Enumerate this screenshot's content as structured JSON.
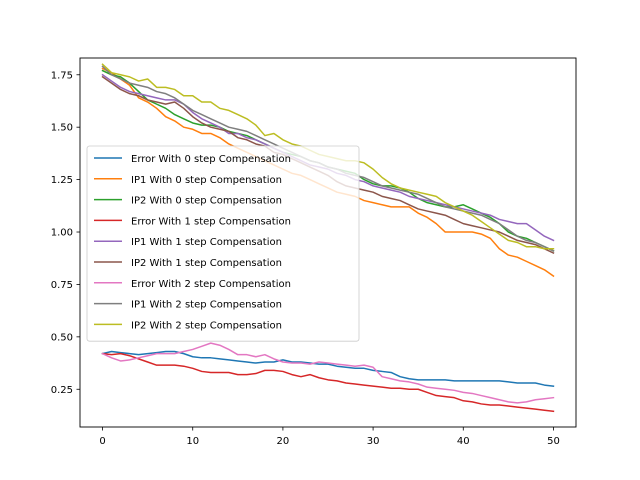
{
  "chart_data": {
    "type": "line",
    "title": "",
    "xlabel": "",
    "ylabel": "",
    "xlim": [
      -2.5,
      52.5
    ],
    "ylim": [
      0.07,
      1.83
    ],
    "xticks": [
      0,
      10,
      20,
      30,
      40,
      50
    ],
    "yticks": [
      0.25,
      0.5,
      0.75,
      1.0,
      1.25,
      1.5,
      1.75
    ],
    "xtick_labels": [
      "0",
      "10",
      "20",
      "30",
      "40",
      "50"
    ],
    "ytick_labels": [
      "0.25",
      "0.50",
      "0.75",
      "1.00",
      "1.25",
      "1.50",
      "1.75"
    ],
    "grid": false,
    "legend_position": "center-left",
    "x": [
      0,
      1,
      2,
      3,
      4,
      5,
      6,
      7,
      8,
      9,
      10,
      11,
      12,
      13,
      14,
      15,
      16,
      17,
      18,
      19,
      20,
      21,
      22,
      23,
      24,
      25,
      26,
      27,
      28,
      29,
      30,
      31,
      32,
      33,
      34,
      35,
      36,
      37,
      38,
      39,
      40,
      41,
      42,
      43,
      44,
      45,
      46,
      47,
      48,
      49,
      50
    ],
    "series": [
      {
        "name": "Error With 0 step Compensation",
        "color": "#1f77b4",
        "values": [
          0.42,
          0.43,
          0.425,
          0.42,
          0.415,
          0.42,
          0.425,
          0.43,
          0.43,
          0.42,
          0.405,
          0.4,
          0.4,
          0.395,
          0.39,
          0.385,
          0.38,
          0.375,
          0.38,
          0.38,
          0.39,
          0.38,
          0.38,
          0.375,
          0.37,
          0.37,
          0.36,
          0.355,
          0.35,
          0.35,
          0.34,
          0.335,
          0.33,
          0.31,
          0.3,
          0.295,
          0.295,
          0.295,
          0.295,
          0.29,
          0.29,
          0.29,
          0.29,
          0.29,
          0.29,
          0.285,
          0.28,
          0.28,
          0.28,
          0.27,
          0.265
        ]
      },
      {
        "name": "IP1 With 0 step Compensation",
        "color": "#ff7f0e",
        "values": [
          1.78,
          1.76,
          1.73,
          1.7,
          1.64,
          1.62,
          1.59,
          1.55,
          1.53,
          1.5,
          1.49,
          1.47,
          1.47,
          1.45,
          1.42,
          1.4,
          1.38,
          1.36,
          1.34,
          1.32,
          1.3,
          1.28,
          1.27,
          1.25,
          1.23,
          1.21,
          1.19,
          1.18,
          1.17,
          1.15,
          1.14,
          1.13,
          1.12,
          1.12,
          1.12,
          1.09,
          1.07,
          1.04,
          1.0,
          1.0,
          1.0,
          1.0,
          0.99,
          0.97,
          0.92,
          0.89,
          0.88,
          0.86,
          0.84,
          0.82,
          0.79
        ]
      },
      {
        "name": "IP2 With 0 step Compensation",
        "color": "#2ca02c",
        "values": [
          1.77,
          1.75,
          1.74,
          1.71,
          1.67,
          1.63,
          1.61,
          1.59,
          1.56,
          1.54,
          1.52,
          1.51,
          1.51,
          1.5,
          1.48,
          1.47,
          1.46,
          1.44,
          1.42,
          1.4,
          1.38,
          1.37,
          1.36,
          1.34,
          1.33,
          1.31,
          1.3,
          1.29,
          1.28,
          1.25,
          1.23,
          1.22,
          1.22,
          1.21,
          1.19,
          1.16,
          1.14,
          1.13,
          1.12,
          1.12,
          1.13,
          1.11,
          1.09,
          1.07,
          1.04,
          1.0,
          0.98,
          0.97,
          0.95,
          0.93,
          0.91
        ]
      },
      {
        "name": "Error With 1 step Compensation",
        "color": "#d62728",
        "values": [
          0.42,
          0.415,
          0.42,
          0.41,
          0.395,
          0.38,
          0.365,
          0.365,
          0.365,
          0.36,
          0.35,
          0.335,
          0.33,
          0.33,
          0.33,
          0.32,
          0.32,
          0.325,
          0.34,
          0.34,
          0.335,
          0.32,
          0.31,
          0.32,
          0.305,
          0.295,
          0.29,
          0.28,
          0.275,
          0.27,
          0.265,
          0.26,
          0.255,
          0.255,
          0.25,
          0.25,
          0.235,
          0.22,
          0.215,
          0.21,
          0.195,
          0.19,
          0.18,
          0.175,
          0.175,
          0.17,
          0.165,
          0.16,
          0.155,
          0.15,
          0.145
        ]
      },
      {
        "name": "IP1 With 1 step Compensation",
        "color": "#9467bd",
        "values": [
          1.75,
          1.72,
          1.69,
          1.67,
          1.66,
          1.65,
          1.64,
          1.63,
          1.63,
          1.61,
          1.57,
          1.54,
          1.52,
          1.5,
          1.47,
          1.47,
          1.45,
          1.44,
          1.42,
          1.4,
          1.38,
          1.36,
          1.34,
          1.32,
          1.31,
          1.3,
          1.28,
          1.27,
          1.25,
          1.24,
          1.22,
          1.21,
          1.2,
          1.19,
          1.17,
          1.16,
          1.15,
          1.14,
          1.13,
          1.12,
          1.11,
          1.1,
          1.09,
          1.08,
          1.06,
          1.05,
          1.04,
          1.04,
          1.01,
          0.98,
          0.96
        ]
      },
      {
        "name": "IP2 With 1 step Compensation",
        "color": "#8c564b",
        "values": [
          1.74,
          1.71,
          1.68,
          1.66,
          1.65,
          1.63,
          1.62,
          1.61,
          1.62,
          1.59,
          1.55,
          1.52,
          1.5,
          1.49,
          1.48,
          1.45,
          1.44,
          1.42,
          1.41,
          1.38,
          1.37,
          1.35,
          1.33,
          1.31,
          1.29,
          1.27,
          1.24,
          1.22,
          1.21,
          1.2,
          1.19,
          1.17,
          1.16,
          1.15,
          1.13,
          1.11,
          1.1,
          1.09,
          1.08,
          1.06,
          1.04,
          1.03,
          1.02,
          1.01,
          1.0,
          0.98,
          0.96,
          0.95,
          0.94,
          0.92,
          0.9
        ]
      },
      {
        "name": "Error With 2 step Compensation",
        "color": "#e377c2",
        "values": [
          0.42,
          0.4,
          0.385,
          0.39,
          0.4,
          0.41,
          0.42,
          0.42,
          0.42,
          0.43,
          0.44,
          0.455,
          0.47,
          0.46,
          0.44,
          0.415,
          0.415,
          0.405,
          0.415,
          0.395,
          0.38,
          0.375,
          0.375,
          0.37,
          0.38,
          0.375,
          0.37,
          0.365,
          0.36,
          0.365,
          0.355,
          0.31,
          0.3,
          0.29,
          0.285,
          0.275,
          0.26,
          0.255,
          0.25,
          0.245,
          0.235,
          0.23,
          0.22,
          0.21,
          0.2,
          0.19,
          0.185,
          0.19,
          0.2,
          0.205,
          0.21
        ]
      },
      {
        "name": "IP1 With 2 step Compensation",
        "color": "#7f7f7f",
        "values": [
          1.79,
          1.75,
          1.73,
          1.71,
          1.7,
          1.69,
          1.67,
          1.66,
          1.64,
          1.61,
          1.58,
          1.56,
          1.54,
          1.52,
          1.5,
          1.49,
          1.48,
          1.46,
          1.44,
          1.42,
          1.4,
          1.38,
          1.36,
          1.34,
          1.33,
          1.31,
          1.3,
          1.28,
          1.27,
          1.26,
          1.24,
          1.22,
          1.21,
          1.2,
          1.19,
          1.18,
          1.16,
          1.14,
          1.12,
          1.11,
          1.1,
          1.09,
          1.08,
          1.06,
          1.04,
          1.01,
          0.98,
          0.96,
          0.95,
          0.93,
          0.91
        ]
      },
      {
        "name": "IP2 With 2 step Compensation",
        "color": "#bcbd22",
        "values": [
          1.8,
          1.76,
          1.75,
          1.74,
          1.72,
          1.73,
          1.69,
          1.69,
          1.68,
          1.65,
          1.65,
          1.62,
          1.62,
          1.59,
          1.58,
          1.56,
          1.54,
          1.51,
          1.46,
          1.47,
          1.44,
          1.42,
          1.41,
          1.39,
          1.37,
          1.36,
          1.35,
          1.34,
          1.34,
          1.33,
          1.3,
          1.26,
          1.23,
          1.21,
          1.2,
          1.19,
          1.18,
          1.17,
          1.14,
          1.12,
          1.1,
          1.08,
          1.05,
          1.02,
          0.99,
          0.96,
          0.95,
          0.93,
          0.93,
          0.92,
          0.92
        ]
      }
    ]
  }
}
